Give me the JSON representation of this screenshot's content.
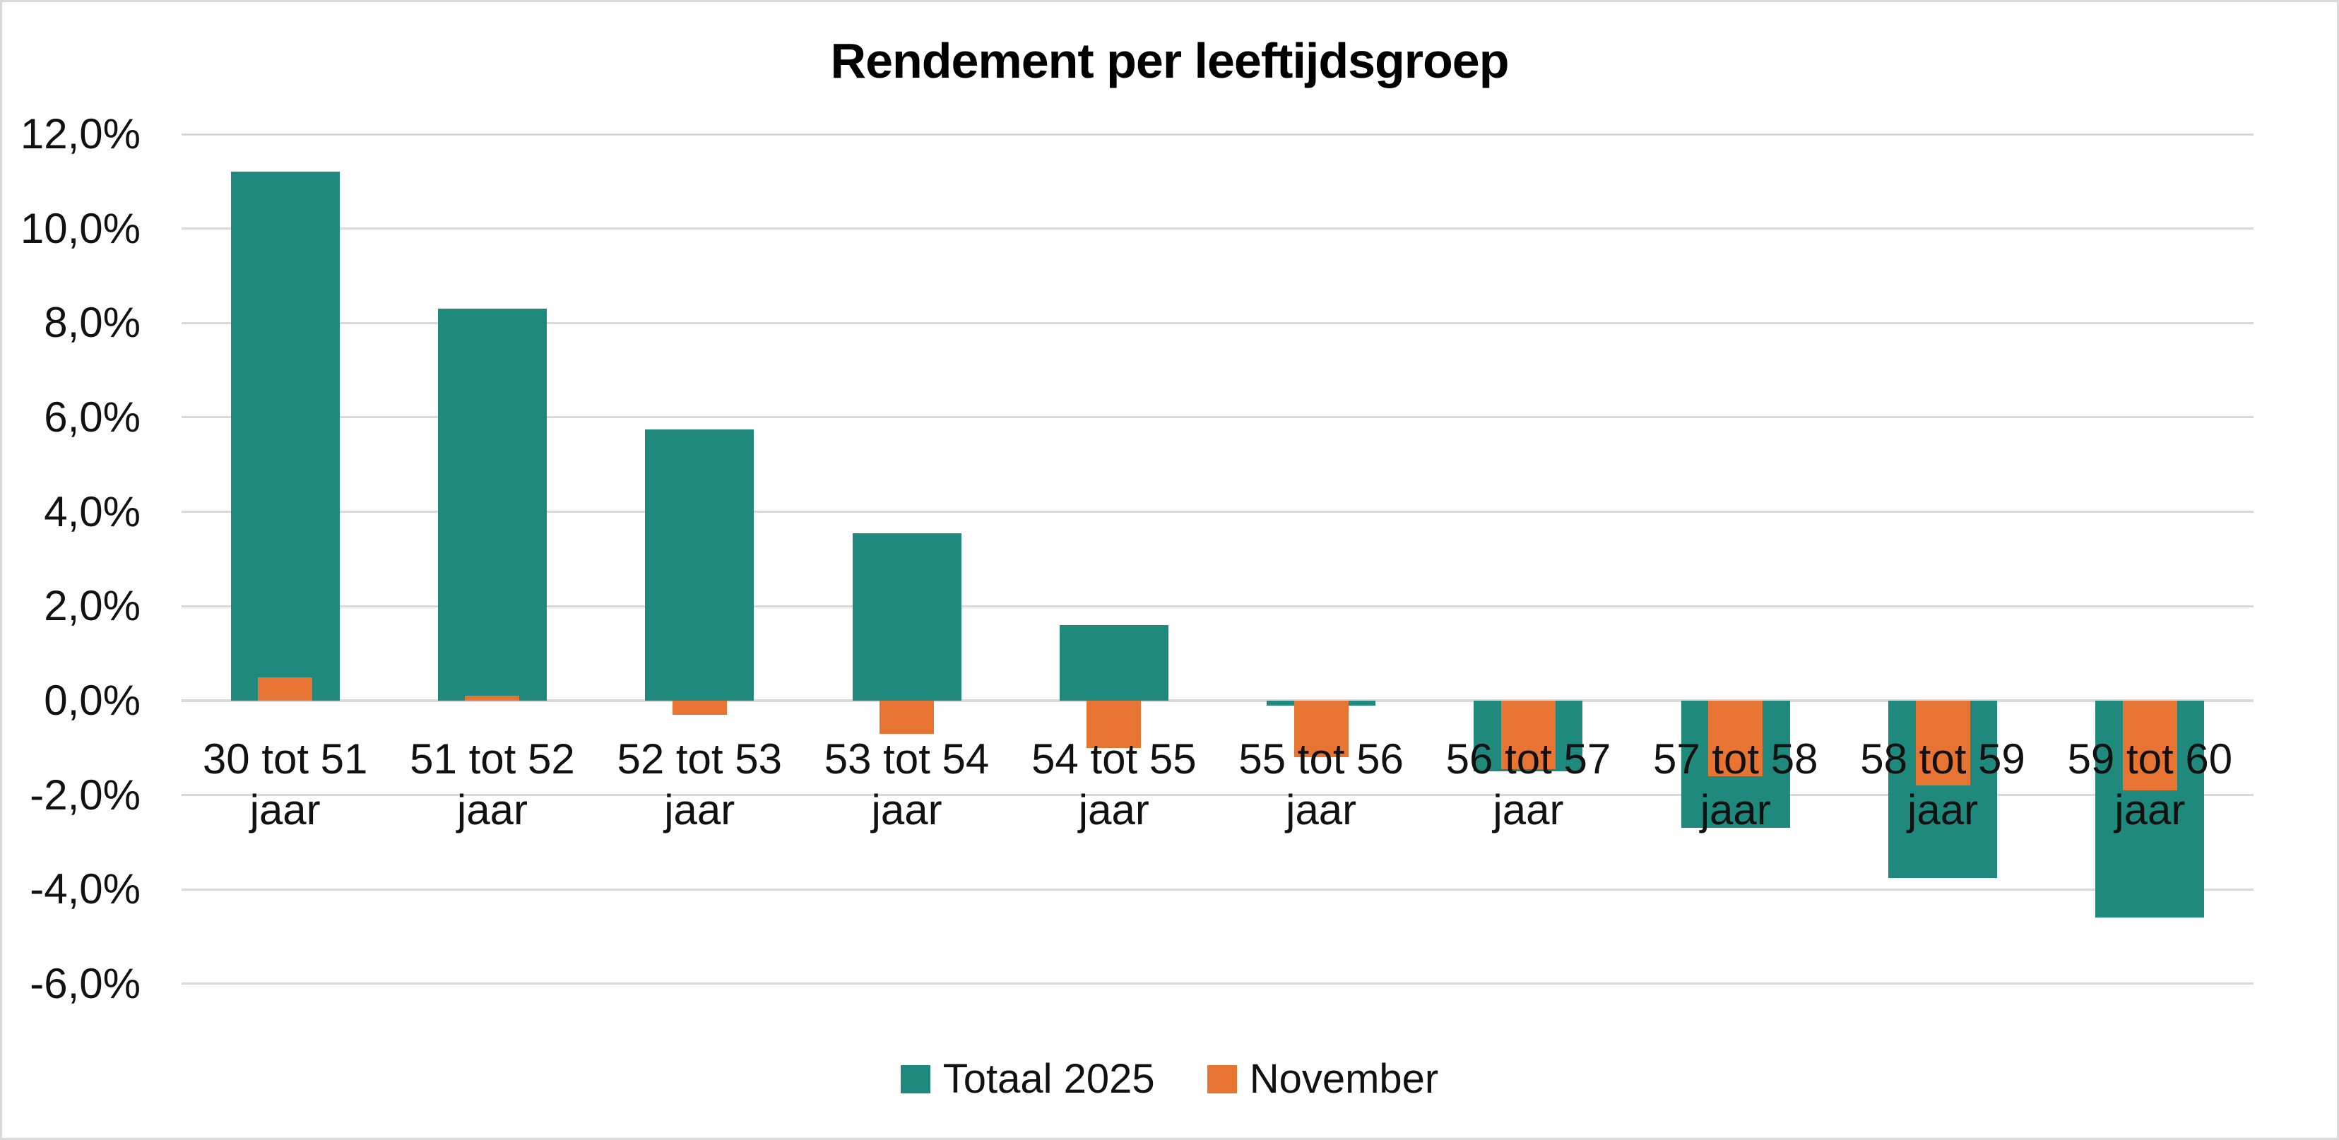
{
  "title": "Rendement per leeftijdsgroep",
  "chart_data": {
    "type": "bar",
    "title": "Rendement per leeftijdsgroep",
    "categories": [
      "30 tot 51 jaar",
      "51 tot 52 jaar",
      "52 tot 53 jaar",
      "53 tot 54 jaar",
      "54 tot 55 jaar",
      "55 tot 56 jaar",
      "56 tot 57 jaar",
      "57 tot 58 jaar",
      "58 tot 59 jaar",
      "59 tot 60 jaar"
    ],
    "series": [
      {
        "name": "Totaal 2025",
        "color": "#20897E",
        "values": [
          11.2,
          8.3,
          5.75,
          3.55,
          1.6,
          -0.1,
          -1.5,
          -2.7,
          -3.75,
          -4.6
        ]
      },
      {
        "name": "November",
        "color": "#E87434",
        "values": [
          0.5,
          0.1,
          -0.3,
          -0.7,
          -1.0,
          -1.2,
          -1.45,
          -1.6,
          -1.8,
          -1.9
        ]
      }
    ],
    "ylabel": "",
    "xlabel": "",
    "ylim": [
      -6,
      12
    ],
    "ytick_step": 2,
    "ytick_labels": [
      "12,0%",
      "10,0%",
      "8,0%",
      "6,0%",
      "4,0%",
      "2,0%",
      "0,0%",
      "-2,0%",
      "-4,0%",
      "-6,0%"
    ],
    "value_format": "percent-comma-decimal",
    "grid": true,
    "gridline_color": "#D9D9D9",
    "legend_position": "bottom"
  }
}
